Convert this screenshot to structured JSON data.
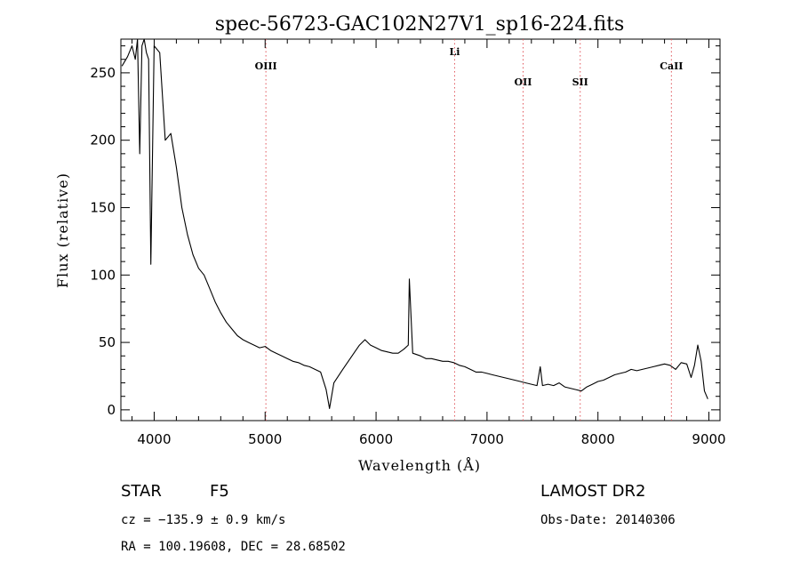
{
  "chart_data": {
    "type": "line",
    "title": "spec-56723-GAC102N27V1_sp16-224.fits",
    "xlabel": "Wavelength (Å)",
    "ylabel": "Flux (relative)",
    "xlim": [
      3700,
      9100
    ],
    "ylim": [
      -8,
      275
    ],
    "xticks": [
      4000,
      5000,
      6000,
      7000,
      8000,
      9000
    ],
    "yticks": [
      0,
      50,
      100,
      150,
      200,
      250
    ],
    "grid": false,
    "line_color": "#000000",
    "marker_color": "#e0555a",
    "lines": [
      {
        "name": "OIII",
        "x": 5007
      },
      {
        "name": "Li",
        "x": 6708
      },
      {
        "name": "OII",
        "x": 7325
      },
      {
        "name": "SII",
        "x": 7840
      },
      {
        "name": "CaII",
        "x": 8662
      }
    ],
    "series": [
      {
        "x": [
          3710,
          3760,
          3800,
          3830,
          3850,
          3870,
          3890,
          3910,
          3930,
          3950,
          3970,
          4000,
          4050,
          4100,
          4150,
          4200,
          4250,
          4300,
          4350,
          4400,
          4450,
          4500,
          4550,
          4600,
          4650,
          4700,
          4750,
          4800,
          4850,
          4900,
          4950,
          5000,
          5050,
          5100,
          5150,
          5200,
          5250,
          5300,
          5350,
          5400,
          5450,
          5500,
          5550,
          5580,
          5620,
          5700,
          5800,
          5850,
          5900,
          5950,
          6000,
          6050,
          6100,
          6150,
          6200,
          6250,
          6290,
          6300,
          6330,
          6400,
          6450,
          6500,
          6550,
          6600,
          6650,
          6700,
          6750,
          6800,
          6850,
          6900,
          6950,
          7000,
          7050,
          7100,
          7150,
          7200,
          7250,
          7300,
          7350,
          7400,
          7450,
          7480,
          7500,
          7550,
          7600,
          7650,
          7700,
          7750,
          7800,
          7850,
          7900,
          7950,
          8000,
          8050,
          8100,
          8150,
          8200,
          8250,
          8300,
          8350,
          8400,
          8450,
          8500,
          8550,
          8600,
          8650,
          8700,
          8750,
          8800,
          8840,
          8870,
          8900,
          8930,
          8960,
          8990
        ],
        "y": [
          255,
          262,
          270,
          260,
          275,
          190,
          270,
          275,
          265,
          260,
          108,
          270,
          265,
          200,
          205,
          180,
          150,
          130,
          115,
          105,
          100,
          90,
          80,
          72,
          65,
          60,
          55,
          52,
          50,
          48,
          46,
          47,
          44,
          42,
          40,
          38,
          36,
          35,
          33,
          32,
          30,
          28,
          15,
          1,
          20,
          30,
          42,
          48,
          52,
          48,
          46,
          44,
          43,
          42,
          42,
          45,
          48,
          97,
          42,
          40,
          38,
          38,
          37,
          36,
          36,
          35,
          33,
          32,
          30,
          28,
          28,
          27,
          26,
          25,
          24,
          23,
          22,
          21,
          20,
          19,
          18,
          32,
          18,
          19,
          18,
          20,
          17,
          16,
          15,
          14,
          17,
          19,
          21,
          22,
          24,
          26,
          27,
          28,
          30,
          29,
          30,
          31,
          32,
          33,
          34,
          33,
          30,
          35,
          34,
          24,
          33,
          48,
          36,
          14,
          8
        ]
      }
    ],
    "footer": {
      "object_class": "STAR",
      "subclass": "F5",
      "survey": "LAMOST DR2",
      "cz": "cz = −135.9 ± 0.9 km/s",
      "obs_date": "Obs-Date: 20140306",
      "coords": "RA = 100.19608, DEC =  28.68502"
    }
  }
}
